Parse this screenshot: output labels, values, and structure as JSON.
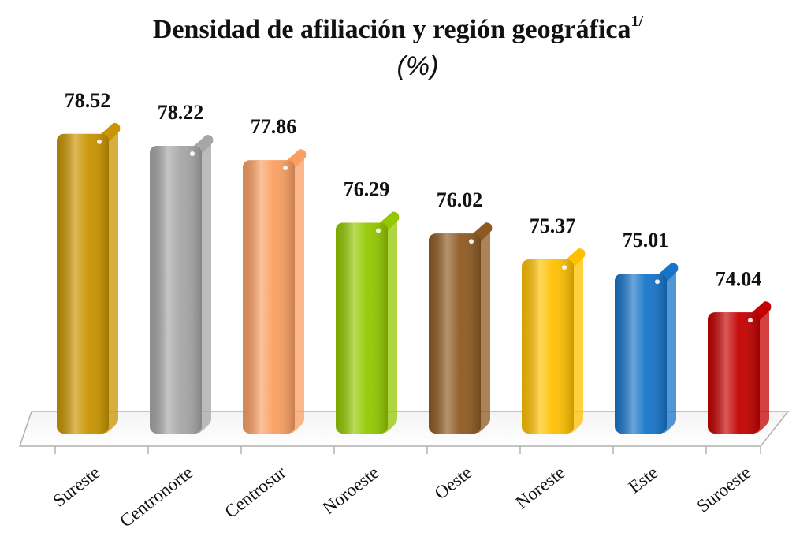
{
  "chart_data": {
    "type": "bar3d",
    "title": "Densidad de afiliación y región geográfica",
    "title_superscript": "1/",
    "subtitle": "(%)",
    "categories": [
      "Sureste",
      "Centronorte",
      "Centrosur",
      "Noroeste",
      "Oeste",
      "Noreste",
      "Este",
      "Suroeste"
    ],
    "values": [
      78.52,
      78.22,
      77.86,
      76.29,
      76.02,
      75.37,
      75.01,
      74.04
    ],
    "colors": [
      "#c99400",
      "#a6a6a6",
      "#fa9f61",
      "#93c800",
      "#8e5a22",
      "#ffc000",
      "#1774c8",
      "#c40000"
    ],
    "ylim": [
      71,
      80
    ]
  }
}
